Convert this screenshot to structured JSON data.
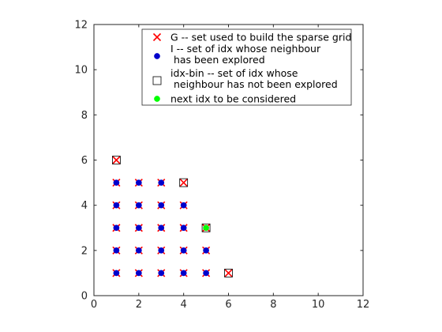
{
  "chart_data": {
    "type": "scatter",
    "title": "",
    "xlabel": "",
    "ylabel": "",
    "xlim": [
      0,
      12
    ],
    "ylim": [
      0,
      12
    ],
    "xticks": [
      0,
      2,
      4,
      6,
      8,
      10,
      12
    ],
    "yticks": [
      0,
      2,
      4,
      6,
      8,
      10,
      12
    ],
    "grid": false,
    "legend_position": "top-right",
    "series": [
      {
        "name": "G -- set used to build the sparse grid",
        "marker": "x",
        "color": "#ff0000",
        "points": [
          [
            1,
            1
          ],
          [
            2,
            1
          ],
          [
            3,
            1
          ],
          [
            4,
            1
          ],
          [
            5,
            1
          ],
          [
            6,
            1
          ],
          [
            1,
            2
          ],
          [
            2,
            2
          ],
          [
            3,
            2
          ],
          [
            4,
            2
          ],
          [
            5,
            2
          ],
          [
            1,
            3
          ],
          [
            2,
            3
          ],
          [
            3,
            3
          ],
          [
            4,
            3
          ],
          [
            5,
            3
          ],
          [
            1,
            4
          ],
          [
            2,
            4
          ],
          [
            3,
            4
          ],
          [
            4,
            4
          ],
          [
            1,
            5
          ],
          [
            2,
            5
          ],
          [
            3,
            5
          ],
          [
            4,
            5
          ],
          [
            1,
            6
          ]
        ]
      },
      {
        "name": "I -- set of idx whose neighbour\n has been explored",
        "marker": "filled-circle",
        "color": "#0000cc",
        "points": [
          [
            1,
            1
          ],
          [
            2,
            1
          ],
          [
            3,
            1
          ],
          [
            4,
            1
          ],
          [
            5,
            1
          ],
          [
            1,
            2
          ],
          [
            2,
            2
          ],
          [
            3,
            2
          ],
          [
            4,
            2
          ],
          [
            5,
            2
          ],
          [
            1,
            3
          ],
          [
            2,
            3
          ],
          [
            3,
            3
          ],
          [
            4,
            3
          ],
          [
            1,
            4
          ],
          [
            2,
            4
          ],
          [
            3,
            4
          ],
          [
            4,
            4
          ],
          [
            1,
            5
          ],
          [
            2,
            5
          ],
          [
            3,
            5
          ]
        ]
      },
      {
        "name": "idx-bin -- set of idx whose\n neighbour has not been explored",
        "marker": "open-square",
        "color": "#000000",
        "points": [
          [
            6,
            1
          ],
          [
            5,
            3
          ],
          [
            4,
            5
          ],
          [
            1,
            6
          ]
        ]
      },
      {
        "name": "next idx to be considered",
        "marker": "filled-circle",
        "color": "#00ff00",
        "points": [
          [
            5,
            3
          ]
        ]
      }
    ]
  }
}
